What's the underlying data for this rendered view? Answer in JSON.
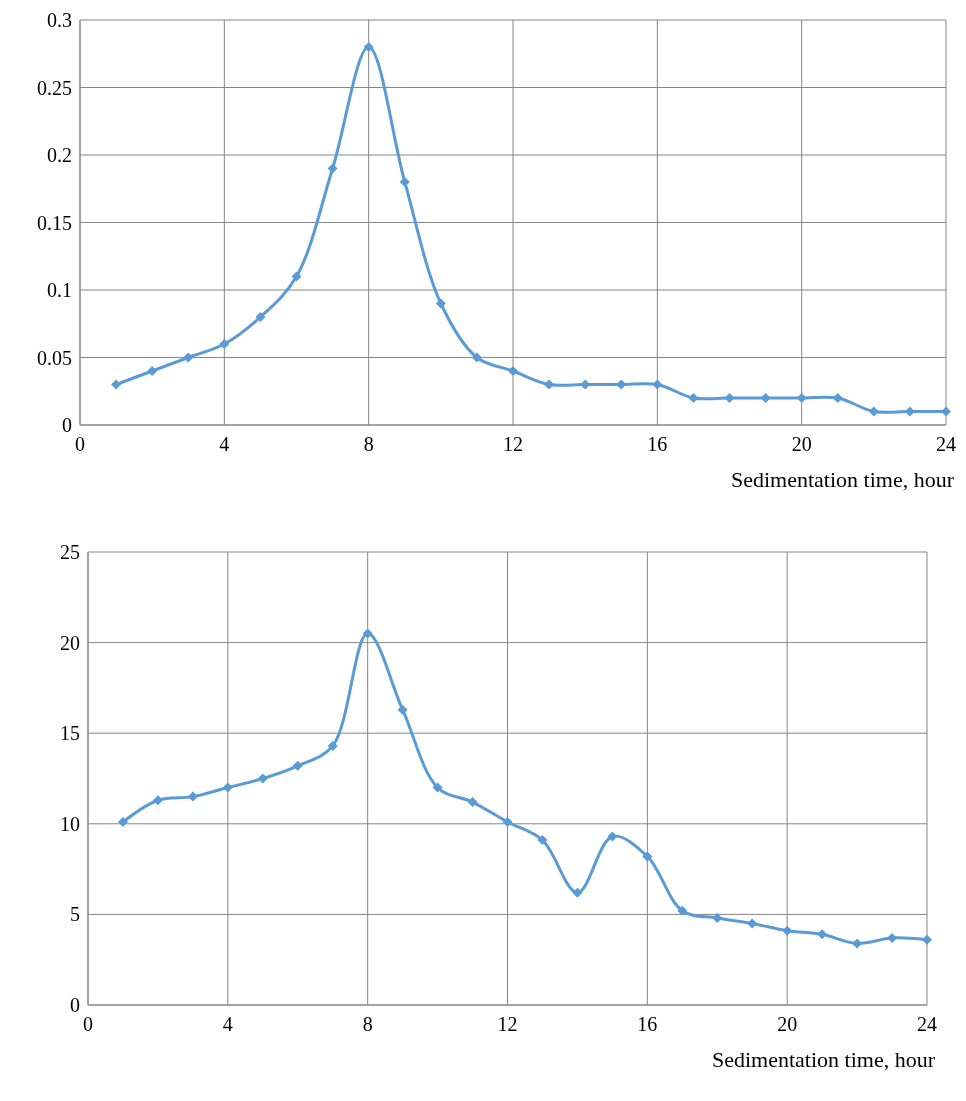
{
  "chart_data": [
    {
      "type": "line",
      "xlabel": "Sedimentation time, hour",
      "x": [
        1,
        2,
        3,
        4,
        5,
        6,
        7,
        8,
        9,
        10,
        11,
        12,
        13,
        14,
        15,
        16,
        17,
        18,
        19,
        20,
        21,
        22,
        23,
        24
      ],
      "series": [
        {
          "color": "#5b9bd5",
          "values": [
            0.03,
            0.04,
            0.05,
            0.06,
            0.08,
            0.11,
            0.19,
            0.28,
            0.18,
            0.09,
            0.05,
            0.04,
            0.03,
            0.03,
            0.03,
            0.03,
            0.02,
            0.02,
            0.02,
            0.02,
            0.02,
            0.01,
            0.01,
            0.01
          ]
        }
      ],
      "xlim": [
        0,
        24
      ],
      "xticks": [
        0,
        4,
        8,
        12,
        16,
        20,
        24
      ],
      "ylim": [
        0,
        0.3
      ],
      "yticks": [
        0,
        0.05,
        0.1,
        0.15,
        0.2,
        0.25,
        0.3
      ],
      "grid": true,
      "marker": "diamond",
      "line_style": "solid"
    },
    {
      "type": "line",
      "xlabel": "Sedimentation time, hour",
      "x": [
        1,
        2,
        3,
        4,
        5,
        6,
        7,
        8,
        9,
        10,
        11,
        12,
        13,
        14,
        15,
        16,
        17,
        18,
        19,
        20,
        21,
        22,
        23,
        24
      ],
      "series": [
        {
          "color": "#5b9bd5",
          "values": [
            10.1,
            11.3,
            11.5,
            12.0,
            12.5,
            13.2,
            14.3,
            20.5,
            16.3,
            12.0,
            11.2,
            10.1,
            9.1,
            6.2,
            9.3,
            8.2,
            5.2,
            4.8,
            4.5,
            4.1,
            3.9,
            3.4,
            3.7,
            3.6
          ]
        }
      ],
      "xlim": [
        0,
        24
      ],
      "xticks": [
        0,
        4,
        8,
        12,
        16,
        20,
        24
      ],
      "ylim": [
        0,
        25
      ],
      "yticks": [
        0,
        5,
        10,
        15,
        20,
        25
      ],
      "grid": true,
      "marker": "diamond",
      "line_style": "solid"
    }
  ]
}
